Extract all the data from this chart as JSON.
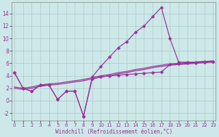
{
  "xlabel": "Windchill (Refroidissement éolien,°C)",
  "bg_color": "#cce8e8",
  "line_color": "#993399",
  "grid_color": "#b0c8c8",
  "x_ticks": [
    0,
    1,
    2,
    3,
    4,
    5,
    6,
    7,
    8,
    9,
    10,
    11,
    12,
    13,
    14,
    15,
    16,
    17,
    18,
    19,
    20,
    21,
    22,
    23
  ],
  "y_ticks": [
    -2,
    0,
    2,
    4,
    6,
    8,
    10,
    12,
    14
  ],
  "xlim": [
    -0.3,
    23.3
  ],
  "ylim": [
    -3.2,
    15.8
  ],
  "series1_x": [
    0,
    1,
    2,
    3,
    4,
    5,
    6,
    7,
    8,
    9,
    10,
    11,
    12,
    13,
    14,
    15,
    16,
    17,
    18,
    19,
    20,
    21,
    22,
    23
  ],
  "series1_y": [
    4.5,
    2.0,
    1.5,
    2.5,
    2.5,
    0.2,
    1.5,
    1.5,
    -2.5,
    3.5,
    3.8,
    4.0,
    4.1,
    4.2,
    4.3,
    4.4,
    4.5,
    4.6,
    5.8,
    5.9,
    6.0,
    6.1,
    6.2,
    6.3
  ],
  "series2_x": [
    0,
    1,
    2,
    3,
    4,
    5,
    6,
    7,
    8,
    9,
    10,
    11,
    12,
    13,
    14,
    15,
    16,
    17,
    18,
    19,
    20,
    21,
    22,
    23
  ],
  "series2_y": [
    4.5,
    2.0,
    1.5,
    2.5,
    2.5,
    0.2,
    1.5,
    1.5,
    -2.5,
    3.8,
    5.5,
    7.0,
    8.5,
    9.5,
    11.0,
    12.0,
    13.5,
    15.0,
    10.0,
    6.2,
    6.2,
    6.2,
    6.3,
    6.3
  ],
  "series3_x": [
    0,
    1,
    2,
    3,
    4,
    5,
    6,
    7,
    8,
    9,
    10,
    11,
    12,
    13,
    14,
    15,
    16,
    17,
    18,
    19,
    20,
    21,
    22,
    23
  ],
  "series3_y": [
    2.0,
    1.8,
    2.0,
    2.3,
    2.5,
    2.6,
    2.8,
    3.0,
    3.2,
    3.5,
    3.8,
    4.0,
    4.3,
    4.5,
    4.8,
    5.0,
    5.3,
    5.5,
    5.7,
    5.8,
    5.9,
    6.0,
    6.1,
    6.2
  ],
  "series4_x": [
    0,
    1,
    2,
    3,
    4,
    5,
    6,
    7,
    8,
    9,
    10,
    11,
    12,
    13,
    14,
    15,
    16,
    17,
    18,
    19,
    20,
    21,
    22,
    23
  ],
  "series4_y": [
    2.2,
    2.0,
    2.2,
    2.5,
    2.7,
    2.8,
    3.0,
    3.2,
    3.4,
    3.7,
    4.0,
    4.2,
    4.5,
    4.7,
    5.0,
    5.2,
    5.5,
    5.7,
    5.9,
    6.0,
    6.1,
    6.2,
    6.3,
    6.4
  ],
  "marker_size": 2.5,
  "linewidth": 0.9,
  "tick_fontsize": 5.0,
  "xlabel_fontsize": 5.5
}
